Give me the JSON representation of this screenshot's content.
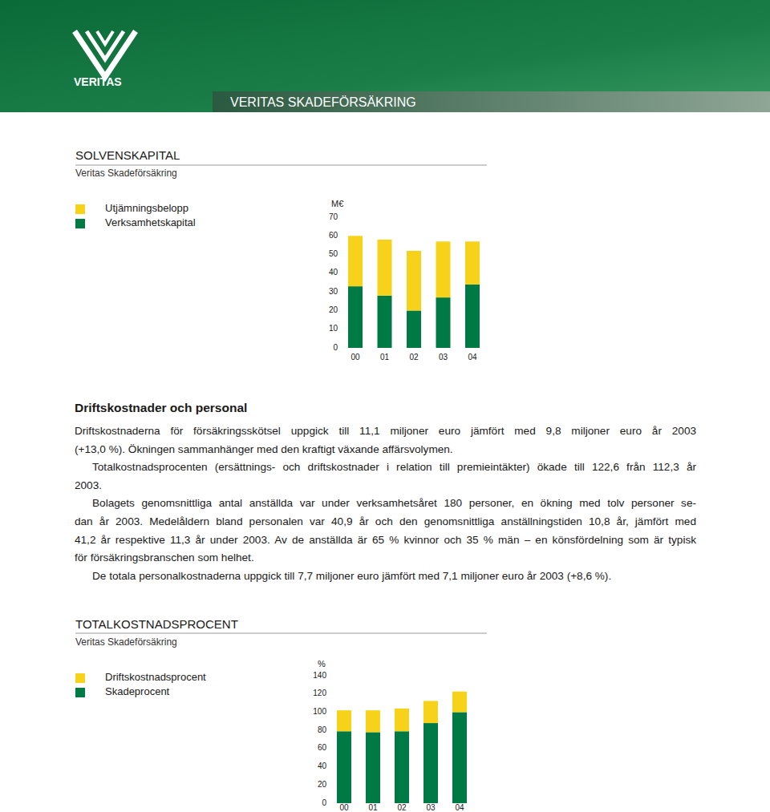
{
  "header": {
    "logo_text": "VERITAS",
    "banner": "VERITAS SKADEFÖRSÄKRING"
  },
  "chart_data": [
    {
      "type": "bar",
      "stacked": true,
      "title": "SOLVENSKAPITAL",
      "subtitle": "Veritas Skadeförsäkring",
      "y_label": "M€",
      "categories": [
        "00",
        "01",
        "02",
        "03",
        "04"
      ],
      "series": [
        {
          "name": "Utjämningsbelopp",
          "color": "#f6d21a",
          "values": [
            27,
            30,
            32,
            30,
            23
          ]
        },
        {
          "name": "Verksamhetskapital",
          "color": "#007a45",
          "values": [
            33,
            28,
            20,
            27,
            34
          ]
        }
      ],
      "ylim": [
        0,
        70
      ],
      "yticks": [
        0,
        10,
        20,
        30,
        40,
        50,
        60,
        70
      ],
      "grid": false,
      "legend": "left"
    },
    {
      "type": "bar",
      "stacked": true,
      "title": "TOTALKOSTNADSPROCENT",
      "subtitle": "Veritas Skadeförsäkring",
      "y_label": "%",
      "categories": [
        "00",
        "01",
        "02",
        "03",
        "04"
      ],
      "series": [
        {
          "name": "Driftskostnadsprocent",
          "color": "#f6d21a",
          "values": [
            23,
            24,
            25,
            24.3,
            22.6
          ]
        },
        {
          "name": "Skadeprocent",
          "color": "#007a45",
          "values": [
            79,
            78,
            79,
            88,
            100
          ]
        }
      ],
      "ylim": [
        0,
        140
      ],
      "yticks": [
        0,
        20,
        40,
        60,
        80,
        100,
        120,
        140
      ],
      "grid": false,
      "legend": "left"
    }
  ],
  "section": {
    "heading": "Driftskostnader och personal",
    "paragraphs": [
      [
        "Driftskostnaderna för försäkringsskötsel uppgick till 11,1 miljoner euro jämfört med 9,8 miljoner euro år 2003",
        "(+13,0 %). Ökningen sammanhänger med den kraftigt växande affärsvolymen."
      ],
      [
        "Totalkostnadsprocenten (ersättnings- och driftskostnader i relation till premieintäkter) ökade till 122,6 från 112,3 år",
        "2003."
      ],
      [
        "Bolagets genomsnittliga antal anställda var under verksamhetsåret 180 personer, en ökning med tolv personer se-",
        "dan år 2003. Medelåldern bland personalen var 40,9 år och den genomsnittliga anställningstiden 10,8 år, jämfört med",
        "41,2 år respektive 11,3 år under 2003. Av de anställda är 65 % kvinnor och 35 % män – en könsfördelning som är typisk",
        "för försäkringsbranschen som helhet."
      ],
      [
        "De totala personalkostnaderna uppgick till 7,7 miljoner euro jämfört med 7,1 miljoner euro år 2003 (+8,6 %)."
      ]
    ]
  }
}
